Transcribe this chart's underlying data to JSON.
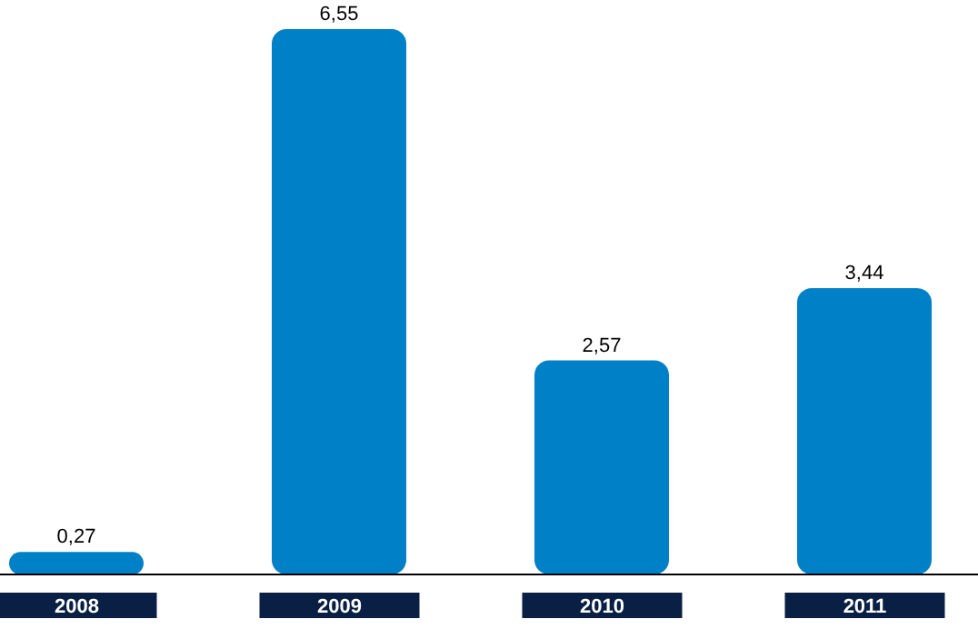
{
  "chart_data": {
    "type": "bar",
    "categories": [
      "2008",
      "2009",
      "2010",
      "2011"
    ],
    "values": [
      0.27,
      6.55,
      2.57,
      3.44
    ],
    "value_labels": [
      "0,27",
      "6,55",
      "2,57",
      "3,44"
    ],
    "color": "#0080c6"
  }
}
